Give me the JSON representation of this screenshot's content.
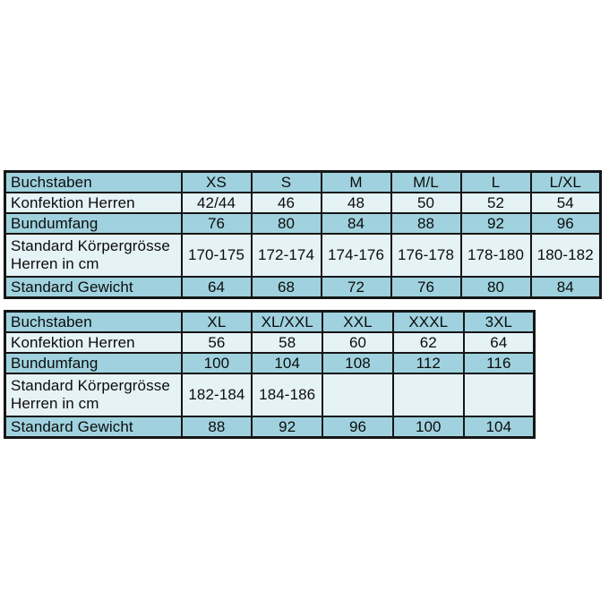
{
  "colors": {
    "row_teal": "#9fd2de",
    "row_light": "#e5f2f6",
    "border": "#161616",
    "text": "#0c0c0c",
    "background": "#ffffff"
  },
  "chart_data": [
    {
      "type": "table",
      "name": "men-sizes-xs-to-lxl",
      "rows": [
        {
          "label": "Buchstaben",
          "values": [
            "XS",
            "S",
            "M",
            "M/L",
            "L",
            "L/XL"
          ],
          "shade": "teal",
          "two_line": false
        },
        {
          "label": "Konfektion Herren",
          "values": [
            "42/44",
            "46",
            "48",
            "50",
            "52",
            "54"
          ],
          "shade": "light",
          "two_line": false
        },
        {
          "label": "Bundumfang",
          "values": [
            "76",
            "80",
            "84",
            "88",
            "92",
            "96"
          ],
          "shade": "teal",
          "two_line": false
        },
        {
          "label": "Standard Körpergrösse Herren in cm",
          "values": [
            "170-175",
            "172-174",
            "174-176",
            "176-178",
            "178-180",
            "180-182"
          ],
          "shade": "light",
          "two_line": true
        },
        {
          "label": "Standard Gewicht",
          "values": [
            "64",
            "68",
            "72",
            "76",
            "80",
            "84"
          ],
          "shade": "teal",
          "two_line": false
        }
      ]
    },
    {
      "type": "table",
      "name": "men-sizes-xl-to-3xl",
      "rows": [
        {
          "label": "Buchstaben",
          "values": [
            "XL",
            "XL/XXL",
            "XXL",
            "XXXL",
            "3XL"
          ],
          "shade": "teal",
          "two_line": false
        },
        {
          "label": "Konfektion Herren",
          "values": [
            "56",
            "58",
            "60",
            "62",
            "64"
          ],
          "shade": "light",
          "two_line": false
        },
        {
          "label": "Bundumfang",
          "values": [
            "100",
            "104",
            "108",
            "112",
            "116"
          ],
          "shade": "teal",
          "two_line": false
        },
        {
          "label": "Standard Körpergrösse Herren in cm",
          "values": [
            "182-184",
            "184-186",
            "",
            "",
            ""
          ],
          "shade": "light",
          "two_line": true
        },
        {
          "label": "Standard Gewicht",
          "values": [
            "88",
            "92",
            "96",
            "100",
            "104"
          ],
          "shade": "teal",
          "two_line": false
        }
      ]
    }
  ]
}
